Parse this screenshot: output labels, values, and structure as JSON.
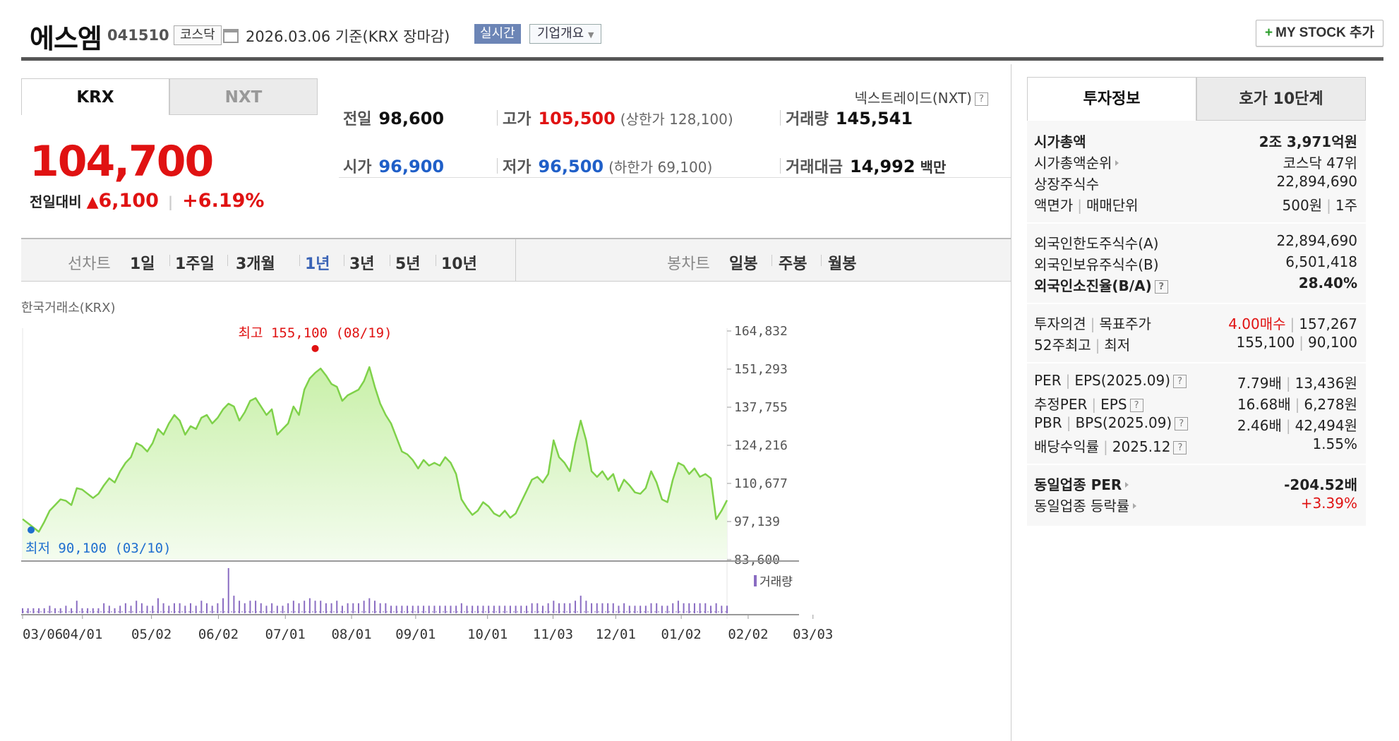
{
  "header": {
    "name": "에스엠",
    "code": "041510",
    "market": "코스닥",
    "date": "2026.03.06 기준(KRX 장마감)",
    "realtime_label": "실시간",
    "company_label": "기업개요",
    "mystock_label": "MY STOCK 추가"
  },
  "exchange_tabs": [
    "KRX",
    "NXT"
  ],
  "nxt_link": "넥스트레이드(NXT)",
  "quote": {
    "price": "104,700",
    "change_label": "전일대비",
    "change_arrow": "▲",
    "change": "6,100",
    "change_pct": "+6.19%",
    "prev_label": "전일",
    "prev": "98,600",
    "open_label": "시가",
    "open": "96,900",
    "high_label": "고가",
    "high": "105,500",
    "upper_limit": "(상한가 128,100)",
    "low_label": "저가",
    "low": "96,500",
    "lower_limit": "(하한가 69,100)",
    "volume_label": "거래량",
    "volume": "145,541",
    "amount_label": "거래대금",
    "amount": "14,992",
    "amount_unit": "백만"
  },
  "period_bar": {
    "line_label": "선차트",
    "line_items": [
      "1일",
      "1주일",
      "3개월",
      "1년",
      "3년",
      "5년",
      "10년"
    ],
    "active": "1년",
    "candle_label": "봉차트",
    "candle_items": [
      "일봉",
      "주봉",
      "월봉"
    ]
  },
  "chart_source": "한국거래소(KRX)",
  "chart_data": {
    "type": "area",
    "ylim": [
      83600,
      164832
    ],
    "y_ticks": [
      "164,832",
      "151,293",
      "137,755",
      "124,216",
      "110,677",
      "97,139",
      "83,600"
    ],
    "x_ticks": [
      "03/06",
      "04/01",
      "05/02",
      "06/02",
      "07/01",
      "08/01",
      "09/01",
      "10/01",
      "11/03",
      "12/01",
      "01/02",
      "02/02",
      "03/03"
    ],
    "x_tick_pos": [
      0,
      0.085,
      0.183,
      0.278,
      0.373,
      0.467,
      0.558,
      0.66,
      0.753,
      0.842,
      0.935,
      1.03,
      1.122
    ],
    "values": [
      98000,
      96500,
      95000,
      93500,
      97000,
      101000,
      103000,
      105000,
      104500,
      103000,
      109000,
      108500,
      107000,
      105500,
      107000,
      110000,
      112500,
      111000,
      115000,
      118000,
      120000,
      125000,
      124000,
      122000,
      125000,
      130000,
      128000,
      132000,
      135000,
      133000,
      128000,
      131000,
      130000,
      134000,
      135000,
      132000,
      134000,
      137000,
      139000,
      138000,
      133000,
      136000,
      140000,
      141000,
      138000,
      135000,
      137000,
      128000,
      130000,
      132000,
      138000,
      135000,
      144000,
      148000,
      150000,
      151500,
      149000,
      146000,
      145000,
      140000,
      142000,
      143000,
      144000,
      147000,
      152000,
      145000,
      139000,
      135000,
      132000,
      127000,
      122000,
      121000,
      119000,
      116000,
      119000,
      117000,
      118000,
      117000,
      120000,
      118000,
      114000,
      105000,
      102000,
      99500,
      101000,
      104000,
      102500,
      100000,
      99000,
      101000,
      98500,
      100000,
      104000,
      108000,
      112000,
      113000,
      111000,
      114000,
      126000,
      120000,
      118000,
      115000,
      125000,
      133000,
      126000,
      115000,
      113000,
      115000,
      112000,
      114000,
      108000,
      112000,
      110000,
      107500,
      107000,
      109000,
      115000,
      111000,
      105000,
      104000,
      112000,
      118000,
      117000,
      114000,
      116000,
      113000,
      114000,
      112500,
      98000,
      101000,
      104700
    ],
    "volume": [
      2,
      2,
      2,
      2,
      2,
      3,
      2,
      2,
      3,
      2,
      5,
      2,
      2,
      2,
      2,
      4,
      3,
      2,
      3,
      4,
      3,
      5,
      4,
      3,
      3,
      6,
      4,
      3,
      4,
      4,
      3,
      4,
      3,
      5,
      4,
      3,
      4,
      6,
      18,
      7,
      5,
      4,
      5,
      5,
      4,
      3,
      4,
      3,
      3,
      4,
      5,
      4,
      5,
      6,
      5,
      5,
      4,
      4,
      5,
      3,
      4,
      4,
      4,
      5,
      6,
      5,
      4,
      4,
      3,
      3,
      3,
      3,
      3,
      3,
      3,
      3,
      3,
      3,
      3,
      3,
      3,
      4,
      3,
      3,
      3,
      3,
      3,
      3,
      3,
      3,
      3,
      3,
      3,
      3,
      4,
      4,
      3,
      4,
      5,
      4,
      4,
      4,
      5,
      7,
      5,
      4,
      4,
      4,
      4,
      4,
      3,
      4,
      3,
      3,
      3,
      3,
      4,
      4,
      3,
      3,
      4,
      5,
      4,
      4,
      4,
      4,
      4,
      3,
      4,
      3,
      3
    ],
    "high_label": "최고 155,100 (08/19)",
    "high_value": 155100,
    "high_index": 54,
    "low_label": "최저 90,100 (03/10)",
    "low_value": 90100,
    "low_index": 1,
    "volume_legend": "거래량",
    "colors": {
      "line": "#7fd14a",
      "fill_top": "#c8f0a8",
      "fill_bottom": "#f4fcef",
      "volume": "#8a6cc2",
      "high": "#e01212",
      "low": "#1f6fcf"
    }
  },
  "right_tabs": [
    "투자정보",
    "호가 10단계"
  ],
  "invest": {
    "group1": [
      {
        "k": "시가총액",
        "v": "2조 3,971억원",
        "kb": true,
        "vb": true
      },
      {
        "k": "시가총액순위",
        "v": "코스닥 47위",
        "tri": true
      },
      {
        "k": "상장주식수",
        "v": "22,894,690"
      },
      {
        "k": "액면가",
        "k2": "매매단위",
        "v": "500원",
        "v2": "1주"
      }
    ],
    "group2": [
      {
        "k": "외국인한도주식수(A)",
        "v": "22,894,690"
      },
      {
        "k": "외국인보유주식수(B)",
        "v": "6,501,418"
      },
      {
        "k": "외국인소진율(B/A)",
        "v": "28.40%",
        "kb": true,
        "vb": true,
        "q": true
      }
    ],
    "group3": [
      {
        "k": "투자의견",
        "k2": "목표주가",
        "v": "4.00매수",
        "v2": "157,267",
        "vred": true
      },
      {
        "k": "52주최고",
        "k2": "최저",
        "v": "155,100",
        "v2": "90,100"
      }
    ],
    "group4": [
      {
        "k": "PER",
        "k2": "EPS(2025.09)",
        "v": "7.79배",
        "v2": "13,436원",
        "q": true
      },
      {
        "k": "추정PER",
        "k2": "EPS",
        "v": "16.68배",
        "v2": "6,278원",
        "q": true
      },
      {
        "k": "PBR",
        "k2": "BPS(2025.09)",
        "v": "2.46배",
        "v2": "42,494원",
        "q": true
      },
      {
        "k": "배당수익률",
        "k2": "2025.12",
        "v": "1.55%",
        "q": true
      }
    ],
    "group5": [
      {
        "k": "동일업종 PER",
        "v": "-204.52배",
        "kb": true,
        "vb": true,
        "tri": true
      },
      {
        "k": "동일업종 등락률",
        "v": "+3.39%",
        "tri": true,
        "vred": true
      }
    ]
  }
}
